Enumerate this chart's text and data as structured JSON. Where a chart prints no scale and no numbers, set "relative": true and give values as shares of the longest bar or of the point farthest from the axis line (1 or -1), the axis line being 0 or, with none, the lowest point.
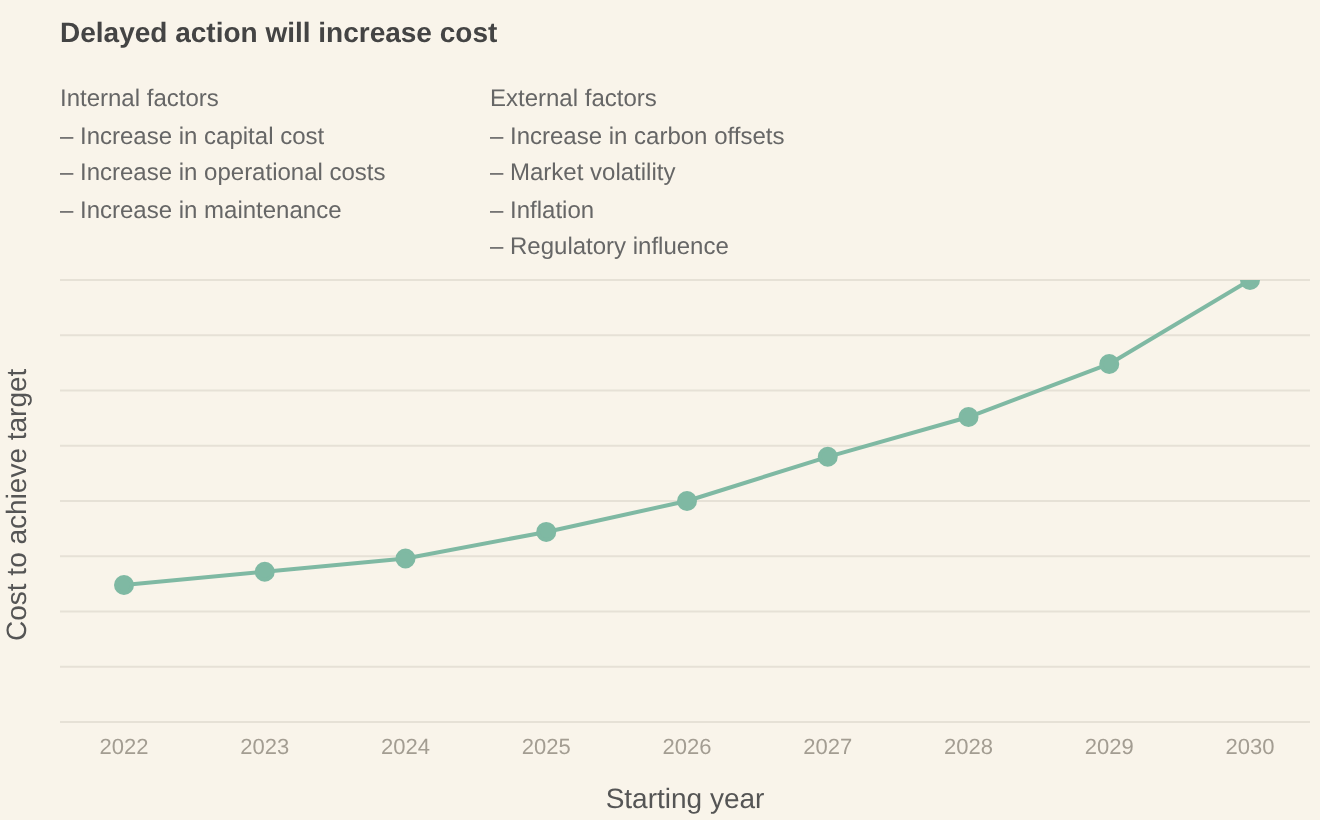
{
  "chart_data": {
    "type": "line",
    "title": "Delayed action will increase cost",
    "xlabel": "Starting year",
    "ylabel": "Cost to achieve target",
    "annotations": [
      "Internal factors",
      "– Increase in capital cost",
      "– Increase in operational costs",
      "– Increase in maintenance",
      "External factors",
      "– Increase in carbon offsets",
      "– Market volatility",
      "– Inflation",
      "– Regulatory influence"
    ],
    "categories": [
      "2022",
      "2023",
      "2024",
      "2025",
      "2026",
      "2027",
      "2028",
      "2029",
      "2030"
    ],
    "relative": true,
    "grid": "y",
    "marker": "circle",
    "line_style": "solid",
    "series": [
      {
        "color": "#7fb9a3",
        "values": [
          0.31,
          0.34,
          0.37,
          0.43,
          0.5,
          0.6,
          0.69,
          0.81,
          1
        ]
      }
    ]
  }
}
